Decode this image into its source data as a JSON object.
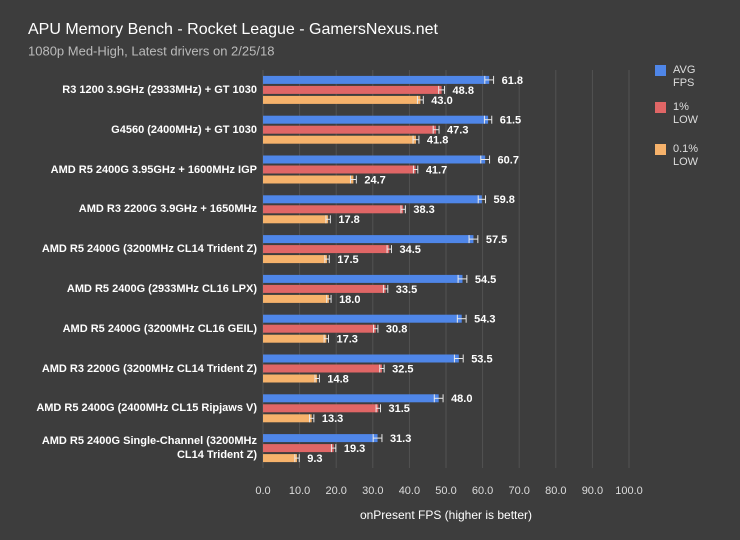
{
  "chart_data": {
    "type": "hbar",
    "title": "APU Memory Bench - Rocket League - GamersNexus.net",
    "subtitle": "1080p Med-High, Latest drivers on 2/25/18",
    "x_label": "onPresent FPS (higher is better)",
    "categories": [
      "R3 1200 3.9GHz (2933MHz) + GT 1030",
      "G4560 (2400MHz) + GT 1030",
      "AMD R5 2400G 3.95GHz + 1600MHz IGP",
      "AMD R3 2200G 3.9GHz + 1650MHz",
      "AMD R5 2400G (3200MHz CL14 Trident Z)",
      "AMD R5 2400G (2933MHz CL16 LPX)",
      "AMD R5 2400G (3200MHz CL16 GEIL)",
      "AMD R3 2200G (3200MHz CL14 Trident Z)",
      "AMD R5 2400G (2400MHz CL15 Ripjaws V)",
      "AMD R5 2400G Single-Channel (3200MHz CL14 Trident Z)"
    ],
    "series": [
      {
        "name": "AVG FPS",
        "color": "#4f86e8",
        "values": [
          61.8,
          61.5,
          60.7,
          59.8,
          57.5,
          54.5,
          54.3,
          53.5,
          48.0,
          31.3
        ],
        "value_labels": [
          "61.8",
          "61.5",
          "60.7",
          "59.8",
          "57.5",
          "54.5",
          "54.3",
          "53.5",
          "48.0",
          "31.3"
        ],
        "errors": [
          1.2,
          1.0,
          1.2,
          1.0,
          1.2,
          1.2,
          1.2,
          1.2,
          1.2,
          1.2
        ]
      },
      {
        "name": "1% LOW",
        "color": "#e06666",
        "values": [
          48.8,
          47.3,
          41.7,
          38.3,
          34.5,
          33.5,
          30.8,
          32.5,
          31.5,
          19.3
        ],
        "value_labels": [
          "48.8",
          "47.3",
          "41.7",
          "38.3",
          "34.5",
          "33.5",
          "30.8",
          "32.5",
          "31.5",
          "19.3"
        ],
        "errors": [
          0.8,
          0.8,
          0.6,
          0.6,
          0.6,
          0.6,
          0.6,
          0.6,
          0.6,
          0.6
        ]
      },
      {
        "name": "0.1% LOW",
        "color": "#f6b26b",
        "values": [
          43.0,
          41.8,
          24.7,
          17.8,
          17.5,
          18.0,
          17.3,
          14.8,
          13.3,
          9.3
        ],
        "value_labels": [
          "43.0",
          "41.8",
          "24.7",
          "17.8",
          "17.5",
          "18.0",
          "17.3",
          "14.8",
          "13.3",
          "9.3"
        ],
        "errors": [
          0.8,
          0.8,
          0.8,
          0.6,
          0.6,
          0.6,
          0.6,
          0.6,
          0.6,
          0.6
        ]
      }
    ],
    "xlim": [
      0,
      100
    ],
    "xticks": [
      {
        "value": 0,
        "label": "0.0"
      },
      {
        "value": 10,
        "label": "10.0"
      },
      {
        "value": 20,
        "label": "20.0"
      },
      {
        "value": 30,
        "label": "30.0"
      },
      {
        "value": 40,
        "label": "40.0"
      },
      {
        "value": 50,
        "label": "50.0"
      },
      {
        "value": 60,
        "label": "60.0"
      },
      {
        "value": 70,
        "label": "70.0"
      },
      {
        "value": 80,
        "label": "80.0"
      },
      {
        "value": 90,
        "label": "90.0"
      },
      {
        "value": 100,
        "label": "100.0"
      }
    ],
    "grid": true,
    "legend": "right"
  }
}
